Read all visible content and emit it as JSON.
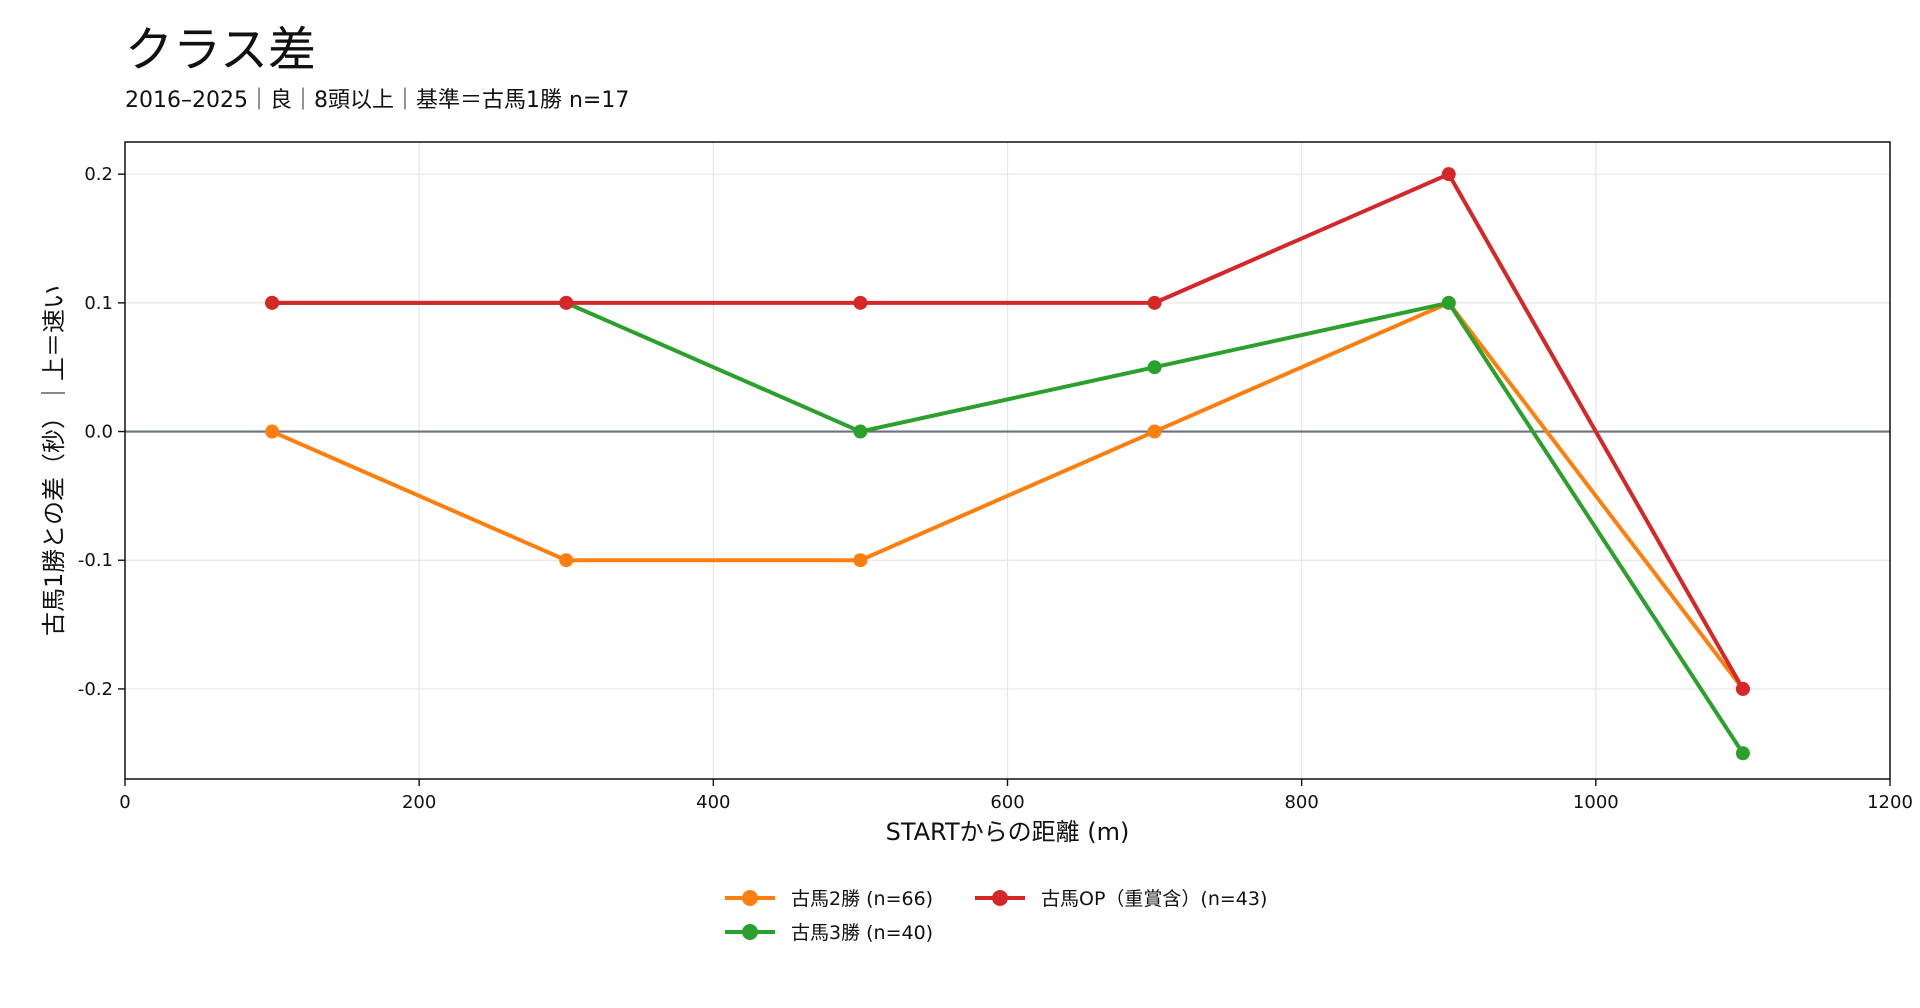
{
  "title": "クラス差",
  "subtitle": "2016–2025｜良｜8頭以上｜基準＝古馬1勝 n=17",
  "chart_data": {
    "type": "line",
    "title": "クラス差",
    "subtitle": "2016–2025｜良｜8頭以上｜基準＝古馬1勝 n=17",
    "xlabel": "STARTからの距離 (m)",
    "ylabel": "古馬1勝との差（秒）｜上＝速い",
    "x": [
      100,
      300,
      500,
      700,
      900,
      1100
    ],
    "xlim": [
      0,
      1200
    ],
    "ylim": [
      -0.27,
      0.225
    ],
    "xticks": [
      0,
      200,
      400,
      600,
      800,
      1000,
      1200
    ],
    "yticks": [
      -0.2,
      -0.1,
      0.0,
      0.1,
      0.2
    ],
    "xtick_labels": [
      "0",
      "200",
      "400",
      "600",
      "800",
      "1000",
      "1200"
    ],
    "ytick_labels": [
      "-0.2",
      "-0.1",
      "0.0",
      "0.1",
      "0.2"
    ],
    "grid": true,
    "reference_line_y": 0.0,
    "legend_position": "bottom-center",
    "series": [
      {
        "name": "古馬2勝 (n=66)",
        "color": "#ff7f0e",
        "values": [
          0.0,
          -0.1,
          -0.1,
          0.0,
          0.1,
          -0.2
        ]
      },
      {
        "name": "古馬3勝 (n=40)",
        "color": "#2ca02c",
        "values": [
          0.1,
          0.1,
          0.0,
          0.05,
          0.1,
          -0.25
        ]
      },
      {
        "name": "古馬OP（重賞含）(n=43)",
        "color": "#d62728",
        "values": [
          0.1,
          0.1,
          0.1,
          0.1,
          0.2,
          -0.2
        ]
      }
    ]
  }
}
